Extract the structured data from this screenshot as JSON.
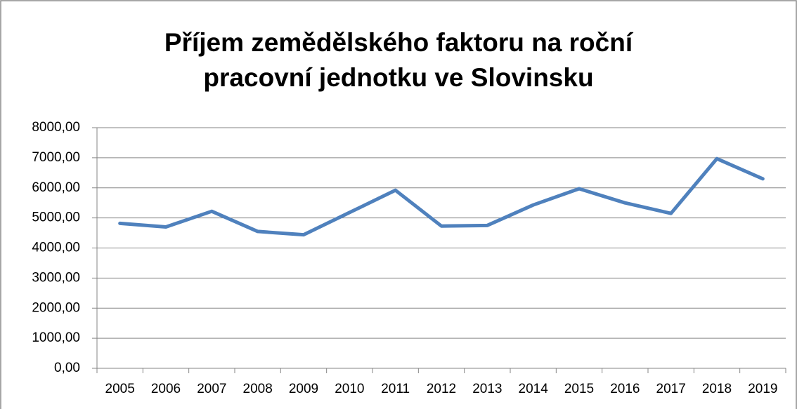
{
  "chart_data": {
    "type": "line",
    "title": "Příjem zemědělského faktoru na roční pracovní jednotku ve Slovinsku",
    "categories": [
      "2005",
      "2006",
      "2007",
      "2008",
      "2009",
      "2010",
      "2011",
      "2012",
      "2013",
      "2014",
      "2015",
      "2016",
      "2017",
      "2018",
      "2019"
    ],
    "values": [
      4820,
      4700,
      5220,
      4550,
      4440,
      5180,
      5920,
      4730,
      4750,
      5430,
      5970,
      5500,
      5150,
      6970,
      6300
    ],
    "color": "#4f81bd",
    "ylim": [
      0,
      8000
    ],
    "yticks": [
      {
        "value": 0,
        "label": "0,00"
      },
      {
        "value": 1000,
        "label": "1000,00"
      },
      {
        "value": 2000,
        "label": "2000,00"
      },
      {
        "value": 3000,
        "label": "3000,00"
      },
      {
        "value": 4000,
        "label": "4000,00"
      },
      {
        "value": 5000,
        "label": "5000,00"
      },
      {
        "value": 6000,
        "label": "6000,00"
      },
      {
        "value": 7000,
        "label": "7000,00"
      },
      {
        "value": 8000,
        "label": "8000,00"
      }
    ],
    "grid": true
  }
}
